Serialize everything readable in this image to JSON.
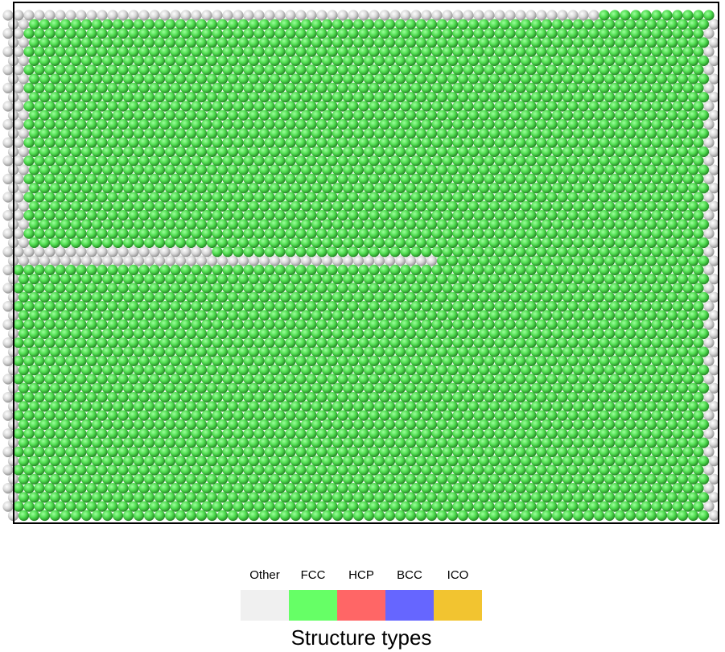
{
  "legend": {
    "title": "Structure types",
    "items": [
      {
        "name": "Other",
        "color": "#f0f0f0"
      },
      {
        "name": "FCC",
        "color": "#66ff66"
      },
      {
        "name": "HCP",
        "color": "#ff6666"
      },
      {
        "name": "BCC",
        "color": "#6666ff"
      },
      {
        "name": "ICO",
        "color": "#f2c430"
      }
    ]
  }
}
